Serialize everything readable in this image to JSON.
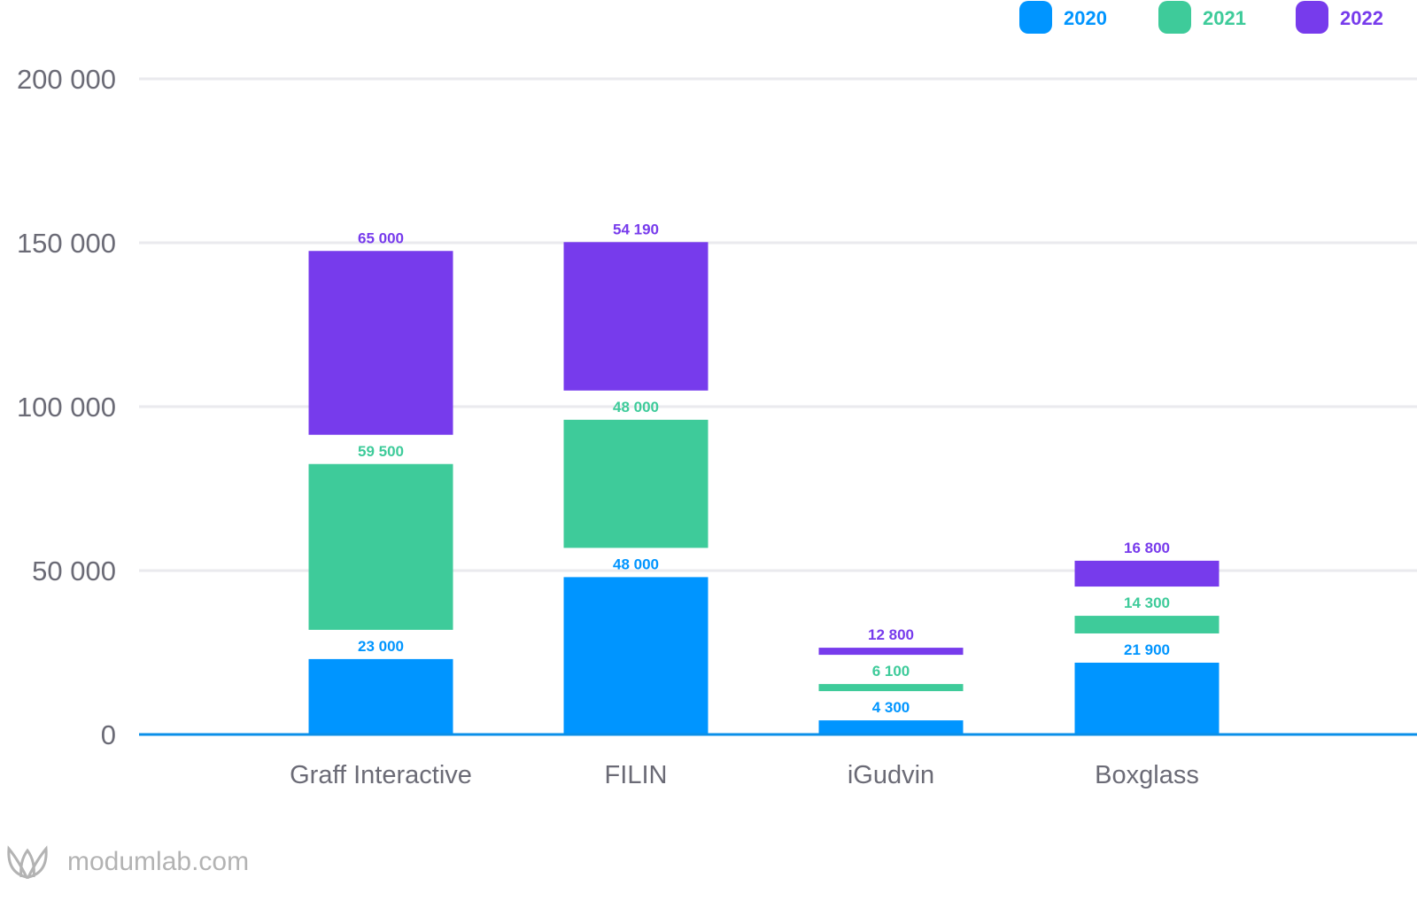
{
  "chart_data": {
    "type": "bar",
    "stacked": true,
    "categories": [
      "Graff Interactive",
      "FILIN",
      "iGudvin",
      "Boxglass"
    ],
    "series": [
      {
        "name": "2020",
        "color": "#0095FF",
        "values": [
          23000,
          48000,
          4300,
          21900
        ],
        "labels": [
          "23 000",
          "48 000",
          "4 300",
          "21 900"
        ]
      },
      {
        "name": "2021",
        "color": "#3ECB9A",
        "values": [
          59500,
          48000,
          6100,
          14300
        ],
        "labels": [
          "59 500",
          "48 000",
          "6 100",
          "14 300"
        ]
      },
      {
        "name": "2022",
        "color": "#773BEC",
        "values": [
          65000,
          54190,
          12800,
          16800
        ],
        "labels": [
          "65 000",
          "54 190",
          "12 800",
          "16 800"
        ]
      }
    ],
    "yticks": [
      0,
      50000,
      100000,
      150000,
      200000
    ],
    "ytick_labels": [
      "0",
      "50 000",
      "100 000",
      "150 000",
      "200 000"
    ],
    "ylim": [
      0,
      200000
    ],
    "grid": true,
    "legend_position": "top-right",
    "title": "",
    "xlabel": "",
    "ylabel": ""
  },
  "watermark": {
    "text": "modumlab.com",
    "icon": "leaf-logo-icon"
  },
  "colors": {
    "axis": "#0A8FE8",
    "grid": "#EAEAEE",
    "text": "#6B6B76"
  }
}
